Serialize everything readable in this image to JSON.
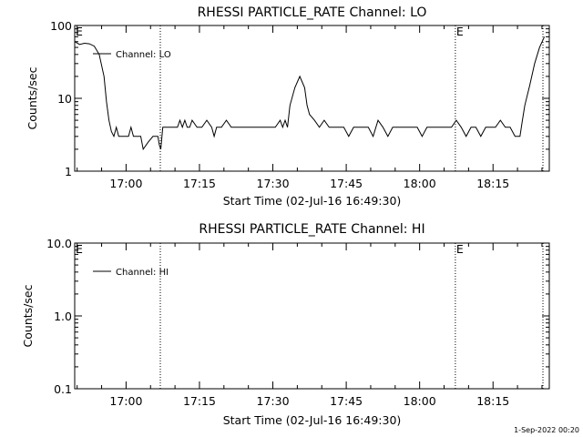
{
  "footer": {
    "timestamp": "1-Sep-2022 00:20"
  },
  "chart_data": [
    {
      "type": "line",
      "title": "RHESSI PARTICLE_RATE Channel: LO",
      "xlabel": "Start Time (02-Jul-16 16:49:30)",
      "ylabel": "Counts/sec",
      "y_scale": "log",
      "ylim": [
        1,
        100
      ],
      "y_ticks": [
        "1",
        "10",
        "100"
      ],
      "x_ticks": [
        "17:00",
        "17:15",
        "17:30",
        "17:45",
        "18:00",
        "18:15"
      ],
      "xlim_minutes": [
        0,
        97
      ],
      "event_markers": [
        {
          "minute": 17.5,
          "label": ""
        },
        {
          "minute": 77.8,
          "label": "E"
        },
        {
          "minute": 95.7,
          "label": ""
        }
      ],
      "start_marker_label": "E",
      "series": [
        {
          "name": "Channel: LO",
          "x": [
            0,
            1,
            2,
            3,
            4,
            5,
            6,
            6.5,
            7,
            7.5,
            8,
            8.5,
            9,
            10,
            11,
            11.5,
            12,
            12.5,
            13,
            13.5,
            14,
            15,
            16,
            17,
            17.3,
            17.6,
            18,
            19,
            20,
            21,
            21.5,
            22,
            22.5,
            23,
            23.5,
            24,
            25,
            26,
            27,
            28,
            28.5,
            29,
            30,
            31,
            32,
            33,
            34,
            35,
            36,
            37,
            38,
            39,
            40,
            41,
            42,
            42.5,
            43,
            43.5,
            44,
            45,
            46,
            47,
            47.5,
            48,
            49,
            50,
            51,
            52,
            53,
            54,
            55,
            56,
            57,
            58,
            59,
            60,
            61,
            62,
            63,
            64,
            65,
            66,
            67,
            68,
            69,
            70,
            71,
            72,
            73,
            74,
            75,
            76,
            77,
            78,
            79,
            80,
            81,
            82,
            83,
            84,
            85,
            86,
            87,
            88,
            89,
            90,
            91,
            91.5,
            92,
            93,
            94,
            95,
            96
          ],
          "values": [
            60,
            55,
            57,
            56,
            52,
            40,
            20,
            9,
            5,
            3.5,
            3,
            4,
            3,
            3,
            3,
            4,
            3,
            3,
            3,
            3,
            2,
            2.5,
            3,
            3,
            2.3,
            2,
            4,
            4,
            4,
            4,
            5,
            4,
            5,
            4,
            4,
            5,
            4,
            4,
            5,
            4,
            3,
            4,
            4,
            5,
            4,
            4,
            4,
            4,
            4,
            4,
            4,
            4,
            4,
            4,
            5,
            4,
            5,
            4,
            8,
            14,
            20,
            14,
            8,
            6,
            5,
            4,
            5,
            4,
            4,
            4,
            4,
            3,
            4,
            4,
            4,
            4,
            3,
            5,
            4,
            3,
            4,
            4,
            4,
            4,
            4,
            4,
            3,
            4,
            4,
            4,
            4,
            4,
            4,
            5,
            4,
            3,
            4,
            4,
            3,
            4,
            4,
            4,
            5,
            4,
            4,
            3,
            3,
            5,
            8,
            15,
            30,
            50,
            70
          ]
        }
      ]
    },
    {
      "type": "line",
      "title": "RHESSI PARTICLE_RATE Channel: HI",
      "xlabel": "Start Time (02-Jul-16 16:49:30)",
      "ylabel": "Counts/sec",
      "y_scale": "log",
      "ylim": [
        0.1,
        10.0
      ],
      "y_ticks": [
        "0.1",
        "1.0",
        "10.0"
      ],
      "x_ticks": [
        "17:00",
        "17:15",
        "17:30",
        "17:45",
        "18:00",
        "18:15"
      ],
      "xlim_minutes": [
        0,
        97
      ],
      "event_markers": [
        {
          "minute": 17.5,
          "label": ""
        },
        {
          "minute": 77.8,
          "label": "E"
        },
        {
          "minute": 95.7,
          "label": ""
        }
      ],
      "start_marker_label": "E",
      "series": [
        {
          "name": "Channel: HI",
          "x": [],
          "values": []
        }
      ]
    }
  ]
}
